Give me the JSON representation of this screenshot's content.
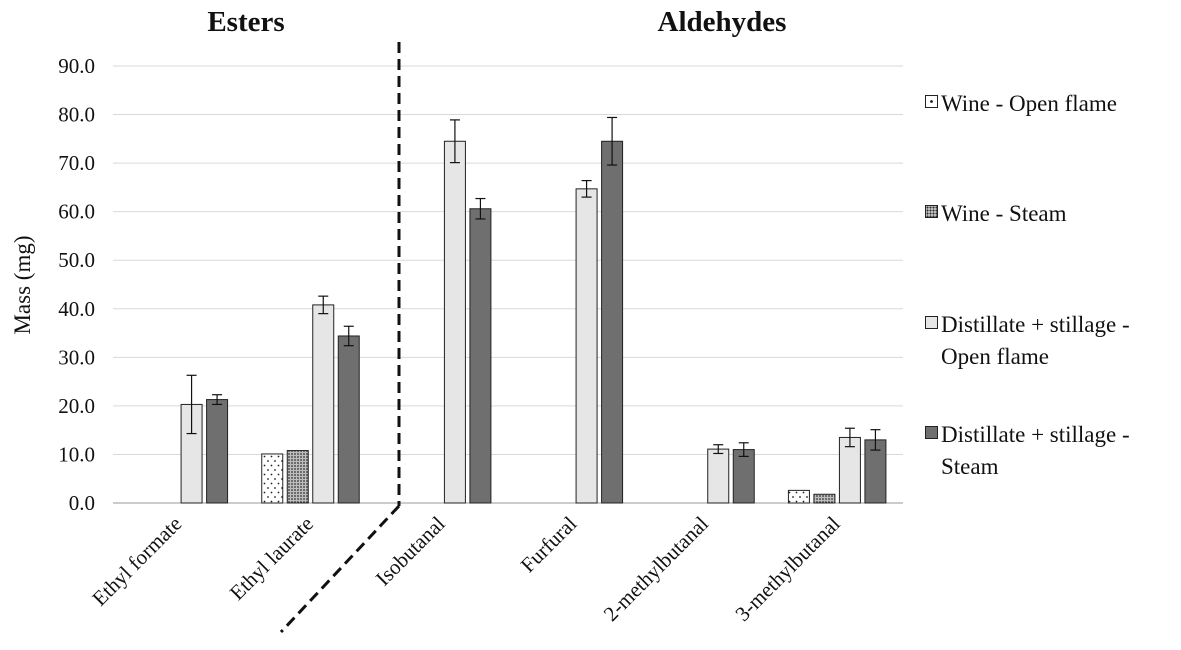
{
  "chart_data": {
    "type": "bar",
    "group_labels": [
      "Esters",
      "Aldehydes"
    ],
    "categories": [
      "Ethyl formate",
      "Ethyl laurate",
      "Isobutanal",
      "Furfural",
      "2-methylbutanal",
      "3-methylbutanal"
    ],
    "ylabel": "Mass (mg)",
    "ylim": [
      0,
      90
    ],
    "yticks": [
      "0.0",
      "10.0",
      "20.0",
      "30.0",
      "40.0",
      "50.0",
      "60.0",
      "70.0",
      "80.0",
      "90.0"
    ],
    "grid": true,
    "legend_position": "right",
    "series": [
      {
        "name": "Wine - Open flame",
        "values": [
          null,
          10.1,
          null,
          null,
          null,
          2.6
        ],
        "errors": [
          null,
          0,
          null,
          null,
          null,
          0
        ],
        "color": "#ffffff",
        "pattern": "dots-sparse"
      },
      {
        "name": "Wine - Steam",
        "values": [
          null,
          10.8,
          null,
          null,
          null,
          1.8
        ],
        "errors": [
          null,
          0,
          null,
          null,
          null,
          0
        ],
        "color": "#9a9a9a",
        "pattern": "dots-dense"
      },
      {
        "name": "Distillate + stillage - Open flame",
        "values": [
          20.3,
          40.8,
          74.5,
          64.7,
          11.1,
          13.5
        ],
        "errors": [
          6.0,
          1.8,
          4.4,
          1.7,
          0.9,
          1.9
        ],
        "color": "#e6e6e6",
        "pattern": "solid"
      },
      {
        "name": "Distillate + stillage - Steam",
        "values": [
          21.3,
          34.4,
          60.6,
          74.5,
          11.0,
          13.0
        ],
        "errors": [
          1.0,
          2.0,
          2.1,
          4.9,
          1.4,
          2.1
        ],
        "color": "#6f6f6f",
        "pattern": "solid"
      }
    ]
  },
  "legend": {
    "items": [
      {
        "label": "Wine - Open flame"
      },
      {
        "label": "Wine - Steam"
      },
      {
        "label": "Distillate + stillage - Open flame"
      },
      {
        "label": "Distillate + stillage - Steam"
      }
    ]
  }
}
